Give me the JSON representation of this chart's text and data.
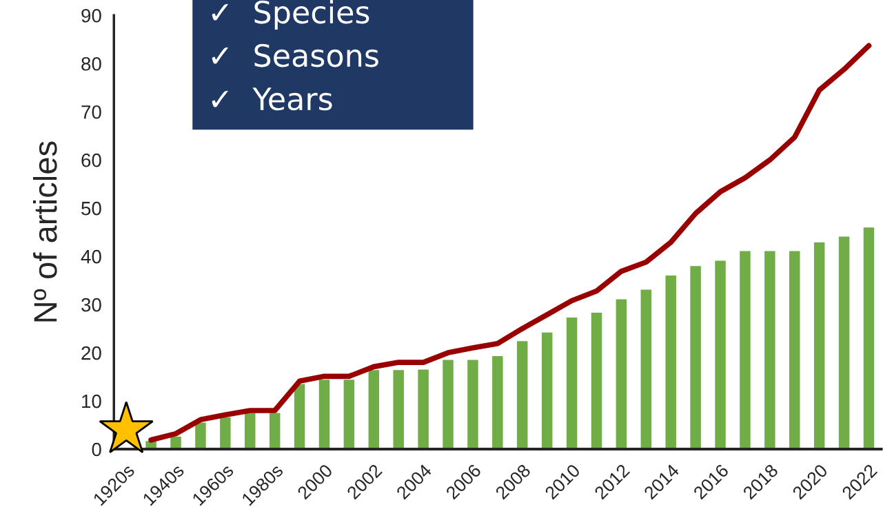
{
  "chart_data": {
    "type": "bar",
    "ylabel": "Nº of articles",
    "categories": [
      "1920s",
      null,
      "1940s",
      null,
      "1960s",
      null,
      "1980s",
      null,
      "2000",
      null,
      "2002",
      null,
      "2004",
      null,
      "2006",
      null,
      "2008",
      null,
      "2010",
      null,
      "2012",
      null,
      "2014",
      null,
      "2016",
      null,
      "2018",
      null,
      "2020",
      null,
      "2022"
    ],
    "series": [
      {
        "color": "#70ad47",
        "values": [
          null,
          1.8,
          2.7,
          5.6,
          6.7,
          7.6,
          7.6,
          13.6,
          14.5,
          14.5,
          16.5,
          16.5,
          16.6,
          18.6,
          18.6,
          19.4,
          22.5,
          24.3,
          27.4,
          28.4,
          31.2,
          33.2,
          36.1,
          38.1,
          39.2,
          41.2,
          41.2,
          41.2,
          43.0,
          44.2,
          46.1
        ]
      },
      {
        "type": "line",
        "color": "#990000",
        "values": [
          null,
          1.9,
          3.2,
          6.1,
          7.1,
          8.0,
          8.0,
          14.1,
          15.1,
          15.1,
          17.1,
          18.0,
          18.0,
          20.0,
          21.0,
          21.9,
          25.0,
          27.9,
          30.8,
          32.8,
          36.9,
          38.8,
          42.9,
          48.9,
          53.4,
          56.3,
          60.0,
          64.7,
          74.5,
          78.8,
          83.7
        ]
      }
    ],
    "ylim": [
      0,
      90
    ],
    "yticks": [
      0,
      10,
      20,
      30,
      40,
      50,
      60,
      70,
      80,
      90
    ],
    "grid": false,
    "legend": false,
    "marker": "none",
    "line_style": "solid",
    "annotations": [
      "✓  Species",
      "✓  Seasons",
      "✓  Years"
    ]
  }
}
